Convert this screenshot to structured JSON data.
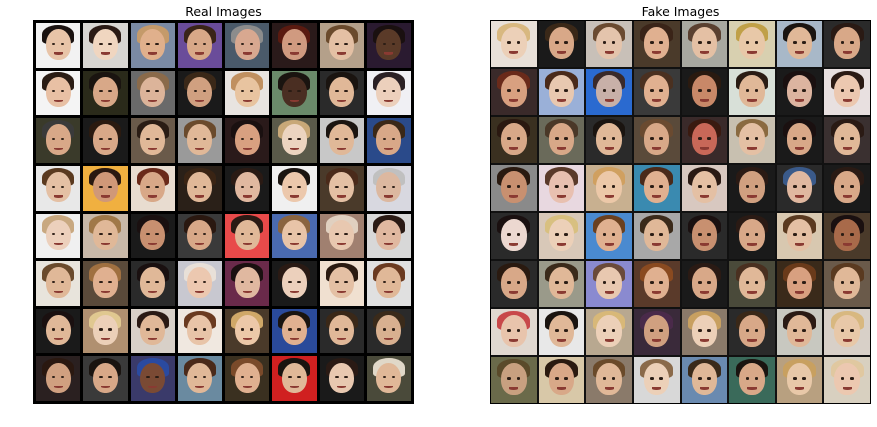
{
  "panels": [
    {
      "title": "Real Images",
      "variant": "real",
      "faces": [
        {
          "bg": "#f2f2f2",
          "skin": "#e8c4a8",
          "hair": "#1a1210"
        },
        {
          "bg": "#d8d6d2",
          "skin": "#f0d6c0",
          "hair": "#2a1a14"
        },
        {
          "bg": "#7a8aa4",
          "skin": "#e0b08c",
          "hair": "#c49a6a"
        },
        {
          "bg": "#6a4c9a",
          "skin": "#d8a888",
          "hair": "#3a2418"
        },
        {
          "bg": "#4a5a6a",
          "skin": "#d8a890",
          "hair": "#8c8c8c"
        },
        {
          "bg": "#2a1a1a",
          "skin": "#d09a80",
          "hair": "#5a1a10"
        },
        {
          "bg": "#b4a08a",
          "skin": "#e4c0a4",
          "hair": "#6a4a2c"
        },
        {
          "bg": "#2a1a30",
          "skin": "#5a3a28",
          "hair": "#1a1010"
        },
        {
          "bg": "#f4f4f4",
          "skin": "#e8c0a4",
          "hair": "#2a1c14"
        },
        {
          "bg": "#2a2a1a",
          "skin": "#d8a888",
          "hair": "#1a1410"
        },
        {
          "bg": "#6a6a6a",
          "skin": "#dcb49a",
          "hair": "#8a6a4a"
        },
        {
          "bg": "#1a1a1a",
          "skin": "#d0a080",
          "hair": "#3a2818"
        },
        {
          "bg": "#e8e4e0",
          "skin": "#e8c4a0",
          "hair": "#c09060"
        },
        {
          "bg": "#6a8a6a",
          "skin": "#4a2e22",
          "hair": "#1a1410"
        },
        {
          "bg": "#2a2a2a",
          "skin": "#e0b898",
          "hair": "#1a1410"
        },
        {
          "bg": "#f0f0f4",
          "skin": "#ecd0bc",
          "hair": "#2a2024"
        },
        {
          "bg": "#3a3a2a",
          "skin": "#d8a888",
          "hair": "#3a3a3a"
        },
        {
          "bg": "#1a1a1a",
          "skin": "#d8a888",
          "hair": "#2a1a10"
        },
        {
          "bg": "#6a5a4a",
          "skin": "#e0b898",
          "hair": "#2a1c14"
        },
        {
          "bg": "#9a9a9a",
          "skin": "#e0b898",
          "hair": "#6a4a2c"
        },
        {
          "bg": "#2a1a1a",
          "skin": "#d8a080",
          "hair": "#1a1010"
        },
        {
          "bg": "#5a5a4a",
          "skin": "#ecd4c0",
          "hair": "#c8a878"
        },
        {
          "bg": "#c8c8c8",
          "skin": "#e0b898",
          "hair": "#1a1410"
        },
        {
          "bg": "#2a4a8a",
          "skin": "#d8a888",
          "hair": "#3a2818"
        },
        {
          "bg": "#e8e8e8",
          "skin": "#e4c0a4",
          "hair": "#5a3a20"
        },
        {
          "bg": "#f0b040",
          "skin": "#d09878",
          "hair": "#2a1810"
        },
        {
          "bg": "#e8dcd0",
          "skin": "#d8a888",
          "hair": "#6a2a1a"
        },
        {
          "bg": "#2a2018",
          "skin": "#e0b898",
          "hair": "#3a2414"
        },
        {
          "bg": "#1a1a1a",
          "skin": "#e0b8a0",
          "hair": "#2a1a14"
        },
        {
          "bg": "#f0f0f0",
          "skin": "#ecc8ac",
          "hair": "#1a1410"
        },
        {
          "bg": "#4a3a2a",
          "skin": "#e4c0a4",
          "hair": "#4a2a1a"
        },
        {
          "bg": "#d8d8e0",
          "skin": "#dcb8a0",
          "hair": "#c0c0c0"
        },
        {
          "bg": "#f0f0f0",
          "skin": "#ecd0bc",
          "hair": "#c8a880"
        },
        {
          "bg": "#c8b8a8",
          "skin": "#e0b898",
          "hair": "#a07848"
        },
        {
          "bg": "#1a1a1a",
          "skin": "#c89070",
          "hair": "#1a1010"
        },
        {
          "bg": "#3a3a3a",
          "skin": "#d8a888",
          "hair": "#2a1810"
        },
        {
          "bg": "#e84a4a",
          "skin": "#e0b898",
          "hair": "#2a1a14"
        },
        {
          "bg": "#4a6ab0",
          "skin": "#e8c4a8",
          "hair": "#8a6440"
        },
        {
          "bg": "#a08070",
          "skin": "#e8c8b0",
          "hair": "#e0d0c0"
        },
        {
          "bg": "#d8d8d8",
          "skin": "#e0b8a0",
          "hair": "#2a1a14"
        },
        {
          "bg": "#e8e4dc",
          "skin": "#e0b898",
          "hair": "#6a4a2c"
        },
        {
          "bg": "#5a4a3a",
          "skin": "#e0b090",
          "hair": "#a07040"
        },
        {
          "bg": "#2a2a2a",
          "skin": "#e0b898",
          "hair": "#1a1010"
        },
        {
          "bg": "#c8c8d0",
          "skin": "#ecc8b0",
          "hair": "#e8e0d8"
        },
        {
          "bg": "#6a2a4a",
          "skin": "#e0b8a0",
          "hair": "#1a1010"
        },
        {
          "bg": "#1a1a1a",
          "skin": "#ecd0bc",
          "hair": "#2a1a14"
        },
        {
          "bg": "#f0e0d0",
          "skin": "#e4c0a4",
          "hair": "#2a1a10"
        },
        {
          "bg": "#e0e0e0",
          "skin": "#e0b898",
          "hair": "#6a3a20"
        },
        {
          "bg": "#1a1a1a",
          "skin": "#e0b898",
          "hair": "#1a1010"
        },
        {
          "bg": "#b09070",
          "skin": "#ecd0b8",
          "hair": "#e0c890"
        },
        {
          "bg": "#d8d0c8",
          "skin": "#e0b898",
          "hair": "#2a1a14"
        },
        {
          "bg": "#f0e8e0",
          "skin": "#e8c4a8",
          "hair": "#6a3a20"
        },
        {
          "bg": "#4a3a2a",
          "skin": "#ecc8a8",
          "hair": "#d0a868"
        },
        {
          "bg": "#2a4a9a",
          "skin": "#e0b090",
          "hair": "#1a1410"
        },
        {
          "bg": "#2a2a2a",
          "skin": "#e0b898",
          "hair": "#3a2818"
        },
        {
          "bg": "#2a2a2a",
          "skin": "#d8b090",
          "hair": "#3a2a1a"
        },
        {
          "bg": "#2a2020",
          "skin": "#d0a080",
          "hair": "#2a1810"
        },
        {
          "bg": "#3a3a3a",
          "skin": "#d8a888",
          "hair": "#1a1410"
        },
        {
          "bg": "#3a3a6a",
          "skin": "#7a4a34",
          "hair": "#2a4aa0"
        },
        {
          "bg": "#6a8aa0",
          "skin": "#e0b898",
          "hair": "#4a2a1a"
        },
        {
          "bg": "#3a3020",
          "skin": "#e0b090",
          "hair": "#7a4a2a"
        },
        {
          "bg": "#d02020",
          "skin": "#e0b898",
          "hair": "#1a1410"
        },
        {
          "bg": "#1a1a1a",
          "skin": "#e8c8b0",
          "hair": "#2a1a14"
        },
        {
          "bg": "#4a4a3a",
          "skin": "#e0b898",
          "hair": "#e0d8c8"
        }
      ]
    },
    {
      "title": "Fake Images",
      "variant": "fake",
      "faces": [
        {
          "bg": "#e8e0d8",
          "skin": "#ecd0b8",
          "hair": "#d8b880"
        },
        {
          "bg": "#1a1a1a",
          "skin": "#d8a888",
          "hair": "#3a2818"
        },
        {
          "bg": "#c8c0b8",
          "skin": "#e4c4ac",
          "hair": "#6a4a30"
        },
        {
          "bg": "#4a3a2a",
          "skin": "#e0b090",
          "hair": "#3a2418"
        },
        {
          "bg": "#a8a8a0",
          "skin": "#e4c0a4",
          "hair": "#5a4030"
        },
        {
          "bg": "#d8d0b0",
          "skin": "#e8c8a8",
          "hair": "#c0a048"
        },
        {
          "bg": "#a8b8c8",
          "skin": "#e0b898",
          "hair": "#1a1410"
        },
        {
          "bg": "#2a2a2a",
          "skin": "#d8a888",
          "hair": "#2a1a14"
        },
        {
          "bg": "#3a2a2a",
          "skin": "#d8a080",
          "hair": "#6a2a1a"
        },
        {
          "bg": "#9ab0d8",
          "skin": "#e8c8b0",
          "hair": "#4a2a1a"
        },
        {
          "bg": "#2a6ad0",
          "skin": "#c8b0a8",
          "hair": "#3a2a2a"
        },
        {
          "bg": "#3a3a3a",
          "skin": "#e0b090",
          "hair": "#4a3020"
        },
        {
          "bg": "#1a1a1a",
          "skin": "#c88868",
          "hair": "#2a1a10"
        },
        {
          "bg": "#d8e0d8",
          "skin": "#e0b898",
          "hair": "#2a1c14"
        },
        {
          "bg": "#1a1a1a",
          "skin": "#dcb4a0",
          "hair": "#1a1010"
        },
        {
          "bg": "#e8e0e0",
          "skin": "#ecc8b0",
          "hair": "#2a1a14"
        },
        {
          "bg": "#3a3020",
          "skin": "#d8a888",
          "hair": "#2a1810"
        },
        {
          "bg": "#6a6a5a",
          "skin": "#d8a888",
          "hair": "#4a3828"
        },
        {
          "bg": "#2a2a2a",
          "skin": "#e0b898",
          "hair": "#1a1410"
        },
        {
          "bg": "#5a4a3a",
          "skin": "#d8a888",
          "hair": "#6a4a30"
        },
        {
          "bg": "#3a2a2a",
          "skin": "#c86858",
          "hair": "#3a1a10"
        },
        {
          "bg": "#c8c0b0",
          "skin": "#e4c0a4",
          "hair": "#8a6a40"
        },
        {
          "bg": "#1a1a1a",
          "skin": "#d8a888",
          "hair": "#1a1010"
        },
        {
          "bg": "#3a3030",
          "skin": "#e0b898",
          "hair": "#2a1a14"
        },
        {
          "bg": "#8a8a8a",
          "skin": "#c89070",
          "hair": "#2a1a10"
        },
        {
          "bg": "#e8d8e0",
          "skin": "#e8c0b0",
          "hair": "#5a3a2a"
        },
        {
          "bg": "#c8b090",
          "skin": "#ecc8a8",
          "hair": "#d0a060"
        },
        {
          "bg": "#3a8ab0",
          "skin": "#e0b090",
          "hair": "#4a2a1a"
        },
        {
          "bg": "#d8c8c0",
          "skin": "#e4c0a4",
          "hair": "#2a1a14"
        },
        {
          "bg": "#1a1a1a",
          "skin": "#d0a080",
          "hair": "#2a1a14"
        },
        {
          "bg": "#2a2a2a",
          "skin": "#e0b8a0",
          "hair": "#3a5a8a"
        },
        {
          "bg": "#1a1a1a",
          "skin": "#d8a888",
          "hair": "#2a1a14"
        },
        {
          "bg": "#2a2a2a",
          "skin": "#ecd8d0",
          "hair": "#1a1010"
        },
        {
          "bg": "#d8c8b8",
          "skin": "#ecd0b8",
          "hair": "#d8c080"
        },
        {
          "bg": "#4a8ad0",
          "skin": "#e0b090",
          "hair": "#6a4020"
        },
        {
          "bg": "#a8a8a8",
          "skin": "#e0b898",
          "hair": "#3a2a1a"
        },
        {
          "bg": "#2a2a2a",
          "skin": "#c89070",
          "hair": "#1a1010"
        },
        {
          "bg": "#1a1a1a",
          "skin": "#d8a888",
          "hair": "#2a1a14"
        },
        {
          "bg": "#d8c8b0",
          "skin": "#e4c0a4",
          "hair": "#5a3a20"
        },
        {
          "bg": "#4a3a2a",
          "skin": "#a86a4a",
          "hair": "#1a1010"
        },
        {
          "bg": "#2a2a2a",
          "skin": "#d8a888",
          "hair": "#2a1a10"
        },
        {
          "bg": "#9a9a8a",
          "skin": "#e0b898",
          "hair": "#3a2a1a"
        },
        {
          "bg": "#8a8ad0",
          "skin": "#e8c8b0",
          "hair": "#6a4a3a"
        },
        {
          "bg": "#5a3a2a",
          "skin": "#e0b090",
          "hair": "#8a4a20"
        },
        {
          "bg": "#1a1a1a",
          "skin": "#d8a888",
          "hair": "#2a1a14"
        },
        {
          "bg": "#4a4a3a",
          "skin": "#e0b898",
          "hair": "#4a3020"
        },
        {
          "bg": "#3a2a1a",
          "skin": "#d8a080",
          "hair": "#6a3a1a"
        },
        {
          "bg": "#6a5a4a",
          "skin": "#e0b898",
          "hair": "#5a3a20"
        },
        {
          "bg": "#e0d8d0",
          "skin": "#e8c4ac",
          "hair": "#c8484a"
        },
        {
          "bg": "#e8e8e8",
          "skin": "#e0b898",
          "hair": "#1a1410"
        },
        {
          "bg": "#b8a890",
          "skin": "#ecd0b8",
          "hair": "#d8b878"
        },
        {
          "bg": "#3a2a3a",
          "skin": "#d0a080",
          "hair": "#4a2a4a"
        },
        {
          "bg": "#8a7a6a",
          "skin": "#ecd0b8",
          "hair": "#c8a060"
        },
        {
          "bg": "#2a2a2a",
          "skin": "#d8a888",
          "hair": "#3a2818"
        },
        {
          "bg": "#c8c8c0",
          "skin": "#e0b898",
          "hair": "#2a1a14"
        },
        {
          "bg": "#d8d0c8",
          "skin": "#e8c8a8",
          "hair": "#d8b880"
        },
        {
          "bg": "#6a6a4a",
          "skin": "#c8a080",
          "hair": "#5a4a2a"
        },
        {
          "bg": "#d8c8a8",
          "skin": "#d8a888",
          "hair": "#2a1a10"
        },
        {
          "bg": "#8a7a6a",
          "skin": "#e0b898",
          "hair": "#6a4a2a"
        },
        {
          "bg": "#d8d8d8",
          "skin": "#ecd0b8",
          "hair": "#8a6a4a"
        },
        {
          "bg": "#6a8ab0",
          "skin": "#e0b898",
          "hair": "#3a2a1a"
        },
        {
          "bg": "#3a6a5a",
          "skin": "#d8a888",
          "hair": "#1a1410"
        },
        {
          "bg": "#b8a080",
          "skin": "#e8c8a8",
          "hair": "#c8a060"
        },
        {
          "bg": "#d8d0c0",
          "skin": "#ecc8b0",
          "hair": "#e0c8a0"
        }
      ]
    }
  ]
}
